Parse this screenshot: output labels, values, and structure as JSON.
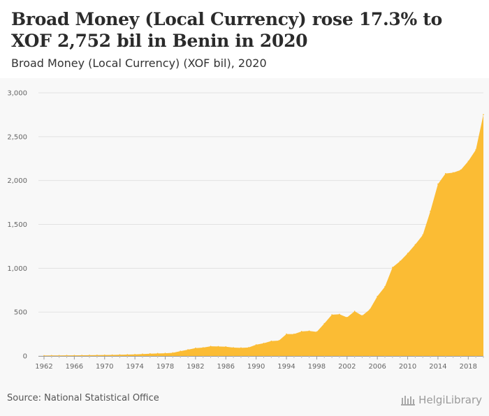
{
  "header": {
    "title": "Broad Money (Local Currency) rose 17.3% to XOF 2,752 bil in Benin in 2020",
    "subtitle": "Broad Money (Local Currency) (XOF bil), 2020"
  },
  "footer": {
    "source": "Source: National Statistical Office",
    "brand": "HelgiLibrary"
  },
  "chart_data": {
    "type": "area",
    "title": "Broad Money (Local Currency) rose 17.3% to XOF 2,752 bil in Benin in 2020",
    "subtitle": "Broad Money (Local Currency) (XOF bil), 2020",
    "xlabel": "",
    "ylabel": "",
    "ylim": [
      0,
      3000
    ],
    "xlim": [
      1962,
      2020
    ],
    "y_ticks": [
      0,
      500,
      1000,
      1500,
      2000,
      2500,
      3000
    ],
    "y_tick_labels": [
      "0",
      "500",
      "1,000",
      "1,500",
      "2,000",
      "2,500",
      "3,000"
    ],
    "x_ticks": [
      1962,
      1966,
      1970,
      1974,
      1978,
      1982,
      1986,
      1990,
      1994,
      1998,
      2002,
      2006,
      2010,
      2014,
      2018
    ],
    "grid": "horizontal",
    "color": "#fbbc34",
    "series": [
      {
        "x": [
          1962,
          1963,
          1964,
          1965,
          1966,
          1967,
          1968,
          1969,
          1970,
          1971,
          1972,
          1973,
          1974,
          1975,
          1976,
          1977,
          1978,
          1979,
          1980,
          1981,
          1982,
          1983,
          1984,
          1985,
          1986,
          1987,
          1988,
          1989,
          1990,
          1991,
          1992,
          1993,
          1994,
          1995,
          1996,
          1997,
          1998,
          1999,
          2000,
          2001,
          2002,
          2003,
          2004,
          2005,
          2006,
          2007,
          2008,
          2009,
          2010,
          2011,
          2012,
          2013,
          2014,
          2015,
          2016,
          2017,
          2018,
          2019,
          2020
        ],
        "values": [
          5,
          6,
          6,
          7,
          7,
          8,
          9,
          10,
          11,
          12,
          14,
          16,
          18,
          22,
          26,
          29,
          31,
          36,
          55,
          72,
          90,
          95,
          110,
          108,
          105,
          95,
          93,
          96,
          128,
          145,
          170,
          175,
          250,
          250,
          280,
          285,
          275,
          370,
          470,
          475,
          440,
          510,
          460,
          530,
          680,
          790,
          1010,
          1080,
          1170,
          1270,
          1380,
          1650,
          1960,
          2080,
          2090,
          2120,
          2220,
          2350,
          2752
        ]
      }
    ]
  }
}
